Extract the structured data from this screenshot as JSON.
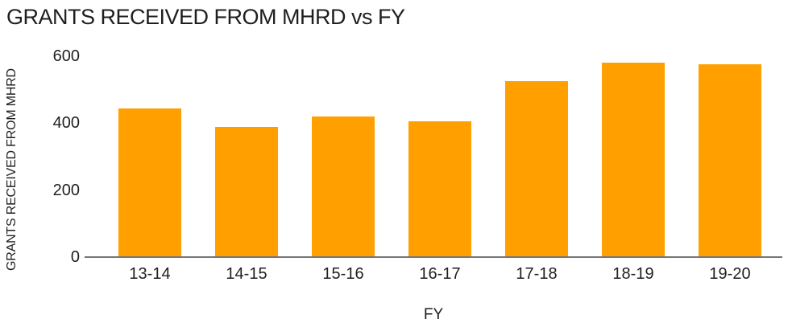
{
  "colors": {
    "background": "#ffffff",
    "bar": "#ffa000",
    "axis_line": "#757575",
    "text": "#1f1f1f"
  },
  "chart_data": {
    "type": "bar",
    "title": "GRANTS RECEIVED FROM MHRD vs FY",
    "xlabel": "FY",
    "ylabel": "GRANTS RECEIVED FROM MHRD",
    "categories": [
      "13-14",
      "14-15",
      "15-16",
      "16-17",
      "17-18",
      "18-19",
      "19-20"
    ],
    "values": [
      445,
      390,
      420,
      405,
      525,
      580,
      575
    ],
    "ylim": [
      0,
      600
    ],
    "yticks": [
      0,
      200,
      400,
      600
    ],
    "grid": false,
    "legend": false,
    "bar_orientation": "vertical"
  }
}
